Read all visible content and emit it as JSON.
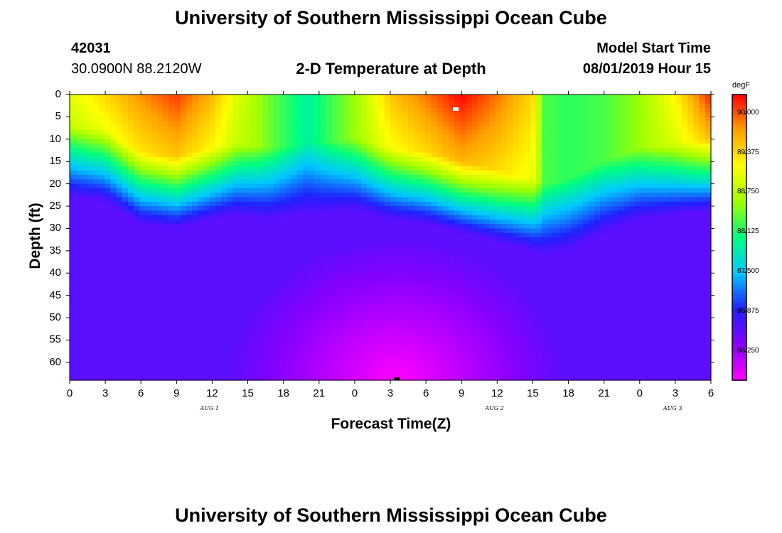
{
  "header": {
    "title": "University of Southern Mississippi Ocean Cube",
    "station_id": "42031",
    "coordinates": "30.0900N 88.2120W",
    "subtitle": "2-D Temperature at Depth",
    "model_start_label": "Model Start Time",
    "model_start_value": "08/01/2019 Hour 15"
  },
  "footer": {
    "title": "University of Southern Mississippi Ocean Cube"
  },
  "chart_data": {
    "type": "heatmap",
    "title": "2-D Temperature at Depth",
    "xlabel": "Forecast Time(Z)",
    "ylabel": "Depth (ft)",
    "x_hours_range": [
      0,
      54
    ],
    "ylim": [
      0,
      64
    ],
    "y_ticks": [
      "0",
      "5",
      "10",
      "15",
      "20",
      "25",
      "30",
      "35",
      "40",
      "45",
      "50",
      "55",
      "60"
    ],
    "x_ticks": [
      "0",
      "3",
      "6",
      "9",
      "12",
      "15",
      "18",
      "21",
      "0",
      "3",
      "6",
      "9",
      "12",
      "15",
      "18",
      "21",
      "0",
      "3",
      "6"
    ],
    "day_labels": [
      {
        "text": "AUG 1",
        "hour": 12
      },
      {
        "text": "AUG 2",
        "hour": 36
      },
      {
        "text": "AUG 3",
        "hour": 51
      }
    ],
    "colorbar": {
      "unit": "degF",
      "range": [
        85.8,
        90.3
      ],
      "tick_labels": [
        "90.000",
        "89.375",
        "88.750",
        "88.125",
        "87.500",
        "86.875",
        "86.250"
      ],
      "colors": [
        "#ff00ff",
        "#8800ff",
        "#2020ff",
        "#00c8ff",
        "#00ff80",
        "#a0ff00",
        "#ffff00",
        "#ffa000",
        "#ff0000"
      ]
    },
    "surface_profile": [
      {
        "hour": 0,
        "surface_temp": 89.0,
        "mixed_layer_ft": 17
      },
      {
        "hour": 3,
        "surface_temp": 89.4,
        "mixed_layer_ft": 18
      },
      {
        "hour": 6,
        "surface_temp": 89.8,
        "mixed_layer_ft": 23
      },
      {
        "hour": 9,
        "surface_temp": 90.1,
        "mixed_layer_ft": 24
      },
      {
        "hour": 12,
        "surface_temp": 89.6,
        "mixed_layer_ft": 22
      },
      {
        "hour": 14,
        "surface_temp": 89.0,
        "mixed_layer_ft": 21
      },
      {
        "hour": 17,
        "surface_temp": 88.4,
        "mixed_layer_ft": 22
      },
      {
        "hour": 20,
        "surface_temp": 87.9,
        "mixed_layer_ft": 21
      },
      {
        "hour": 24,
        "surface_temp": 88.6,
        "mixed_layer_ft": 20
      },
      {
        "hour": 27,
        "surface_temp": 89.5,
        "mixed_layer_ft": 22
      },
      {
        "hour": 30,
        "surface_temp": 89.9,
        "mixed_layer_ft": 23
      },
      {
        "hour": 33,
        "surface_temp": 90.3,
        "mixed_layer_ft": 25
      },
      {
        "hour": 36,
        "surface_temp": 89.9,
        "mixed_layer_ft": 27
      },
      {
        "hour": 39,
        "surface_temp": 89.4,
        "mixed_layer_ft": 29
      },
      {
        "hour": 40,
        "surface_temp": 88.3,
        "mixed_layer_ft": 30
      },
      {
        "hour": 42,
        "surface_temp": 88.2,
        "mixed_layer_ft": 29
      },
      {
        "hour": 45,
        "surface_temp": 88.3,
        "mixed_layer_ft": 25
      },
      {
        "hour": 48,
        "surface_temp": 88.6,
        "mixed_layer_ft": 22
      },
      {
        "hour": 51,
        "surface_temp": 89.2,
        "mixed_layer_ft": 21
      },
      {
        "hour": 54,
        "surface_temp": 90.2,
        "mixed_layer_ft": 20
      }
    ],
    "deep_temp_base": 86.6,
    "deep_temp_min": 85.8,
    "min_location": {
      "hour": 27.5,
      "depth": 64
    }
  }
}
